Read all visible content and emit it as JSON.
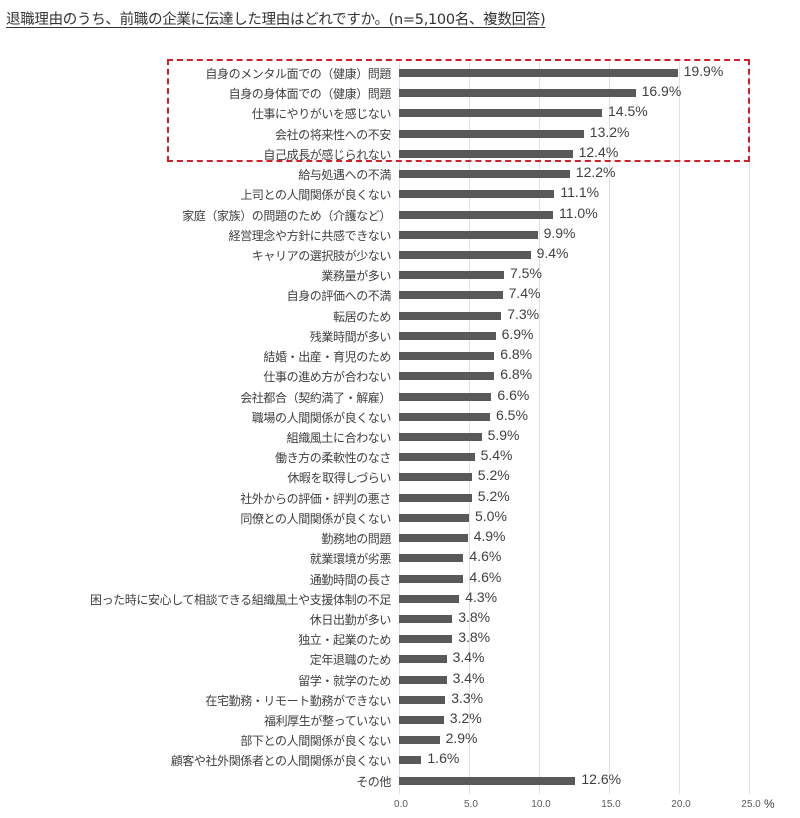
{
  "title": "退職理由のうち、前職の企業に伝達した理由はどれですか。(n=5,100名、複数回答)",
  "colors": {
    "bar": "#595959",
    "grid": "#d5e3f0",
    "highlight_border": "#d0202a",
    "text": "#404040"
  },
  "axis": {
    "ticks": [
      "0.0",
      "5.0",
      "10.0",
      "15.0",
      "20.0",
      "25.0"
    ],
    "unit": "%"
  },
  "highlight": {
    "rows": 5,
    "style": "red-dashed-box"
  },
  "chart_data": {
    "type": "bar",
    "orientation": "horizontal",
    "title": "退職理由のうち、前職の企業に伝達した理由はどれですか。(n=5,100名、複数回答)",
    "xlabel": "%",
    "ylabel": "",
    "xlim": [
      0,
      25
    ],
    "grid": true,
    "categories": [
      "自身のメンタル面での（健康）問題",
      "自身の身体面での（健康）問題",
      "仕事にやりがいを感じない",
      "会社の将来性への不安",
      "自己成長が感じられない",
      "給与処遇への不満",
      "上司との人間関係が良くない",
      "家庭（家族）の問題のため（介護など）",
      "経営理念や方針に共感できない",
      "キャリアの選択肢が少ない",
      "業務量が多い",
      "自身の評価への不満",
      "転居のため",
      "残業時間が多い",
      "結婚・出産・育児のため",
      "仕事の進め方が合わない",
      "会社都合（契約満了・解雇）",
      "職場の人間関係が良くない",
      "組織風土に合わない",
      "働き方の柔軟性のなさ",
      "休暇を取得しづらい",
      "社外からの評価・評判の悪さ",
      "同僚との人間関係が良くない",
      "勤務地の問題",
      "就業環境が劣悪",
      "通勤時間の長さ",
      "困った時に安心して相談できる組織風土や支援体制の不足",
      "休日出勤が多い",
      "独立・起業のため",
      "定年退職のため",
      "留学・就学のため",
      "在宅勤務・リモート勤務ができない",
      "福利厚生が整っていない",
      "部下との人間関係が良くない",
      "顧客や社外関係者との人間関係が良くない",
      "その他"
    ],
    "values": [
      19.9,
      16.9,
      14.5,
      13.2,
      12.4,
      12.2,
      11.1,
      11.0,
      9.9,
      9.4,
      7.5,
      7.4,
      7.3,
      6.9,
      6.8,
      6.8,
      6.6,
      6.5,
      5.9,
      5.4,
      5.2,
      5.2,
      5.0,
      4.9,
      4.6,
      4.6,
      4.3,
      3.8,
      3.8,
      3.4,
      3.4,
      3.3,
      3.2,
      2.9,
      1.6,
      12.6
    ],
    "value_labels": [
      "19.9%",
      "16.9%",
      "14.5%",
      "13.2%",
      "12.4%",
      "12.2%",
      "11.1%",
      "11.0%",
      "9.9%",
      "9.4%",
      "7.5%",
      "7.4%",
      "7.3%",
      "6.9%",
      "6.8%",
      "6.8%",
      "6.6%",
      "6.5%",
      "5.9%",
      "5.4%",
      "5.2%",
      "5.2%",
      "5.0%",
      "4.9%",
      "4.6%",
      "4.6%",
      "4.3%",
      "3.8%",
      "3.8%",
      "3.4%",
      "3.4%",
      "3.3%",
      "3.2%",
      "2.9%",
      "1.6%",
      "12.6%"
    ],
    "annotations": [
      "Top 5 items enclosed in red dashed box"
    ]
  }
}
